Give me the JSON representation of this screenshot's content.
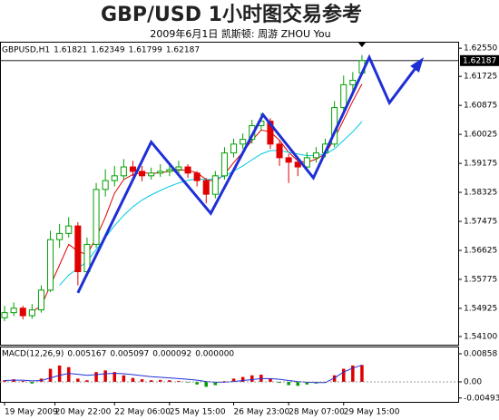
{
  "chart_data": {
    "type": "candlestick",
    "title": "GBP/USD 1小时图交易参考",
    "subtitle": "2009年6月1日  凯斯顿: 周游 ZHOU You",
    "symbol": "GBPUSD,H1",
    "up_color": "#00a000",
    "down_color": "#e00000",
    "candles": [
      [
        1.5465,
        1.55,
        1.5455,
        1.548
      ],
      [
        1.548,
        1.551,
        1.547,
        1.5493
      ],
      [
        1.5493,
        1.55,
        1.546,
        1.5471
      ],
      [
        1.5471,
        1.5505,
        1.5462,
        1.5488
      ],
      [
        1.5488,
        1.556,
        1.548,
        1.5546
      ],
      [
        1.5546,
        1.572,
        1.554,
        1.5694
      ],
      [
        1.5694,
        1.574,
        1.567,
        1.5712
      ],
      [
        1.5712,
        1.576,
        1.57,
        1.5734
      ],
      [
        1.5734,
        1.5745,
        1.556,
        1.56
      ],
      [
        1.56,
        1.57,
        1.5585,
        1.568
      ],
      [
        1.568,
        1.586,
        1.567,
        1.5841
      ],
      [
        1.5841,
        1.59,
        1.582,
        1.5867
      ],
      [
        1.5867,
        1.591,
        1.585,
        1.5881
      ],
      [
        1.5881,
        1.593,
        1.587,
        1.5907
      ],
      [
        1.5907,
        1.5925,
        1.588,
        1.5894
      ],
      [
        1.5894,
        1.591,
        1.5865,
        1.5881
      ],
      [
        1.5881,
        1.5905,
        1.587,
        1.5889
      ],
      [
        1.5889,
        1.5915,
        1.5878,
        1.5894
      ],
      [
        1.5894,
        1.592,
        1.588,
        1.5899
      ],
      [
        1.5899,
        1.5925,
        1.5885,
        1.5907
      ],
      [
        1.5907,
        1.5915,
        1.5875,
        1.5889
      ],
      [
        1.5889,
        1.5895,
        1.585,
        1.5867
      ],
      [
        1.5867,
        1.5875,
        1.58,
        1.5827
      ],
      [
        1.5827,
        1.5895,
        1.5815,
        1.5881
      ],
      [
        1.5881,
        1.5965,
        1.587,
        1.5948
      ],
      [
        1.5948,
        1.599,
        1.5935,
        1.5974
      ],
      [
        1.5974,
        1.6005,
        1.596,
        1.5988
      ],
      [
        1.5988,
        1.6045,
        1.5975,
        1.6028
      ],
      [
        1.6028,
        1.6065,
        1.6015,
        1.6041
      ],
      [
        1.6041,
        1.605,
        1.596,
        1.5974
      ],
      [
        1.5974,
        1.5985,
        1.591,
        1.5934
      ],
      [
        1.5934,
        1.5945,
        1.586,
        1.5921
      ],
      [
        1.5921,
        1.5935,
        1.588,
        1.5907
      ],
      [
        1.5907,
        1.595,
        1.5895,
        1.5934
      ],
      [
        1.5934,
        1.5965,
        1.592,
        1.5948
      ],
      [
        1.5948,
        1.599,
        1.5935,
        1.5974
      ],
      [
        1.5974,
        1.61,
        1.5965,
        1.6081
      ],
      [
        1.6081,
        1.6175,
        1.607,
        1.6148
      ],
      [
        1.6148,
        1.6185,
        1.612,
        1.6161
      ],
      [
        1.61821,
        1.62349,
        1.61799,
        1.62187
      ]
    ],
    "overlays": [
      {
        "color": "#e00000",
        "values": [
          null,
          null,
          null,
          1.5483,
          1.55,
          1.556,
          1.562,
          1.568,
          1.566,
          1.565,
          1.57,
          1.576,
          1.583,
          1.587,
          1.5885,
          1.589,
          1.5888,
          1.589,
          1.5894,
          1.5898,
          1.5897,
          1.589,
          1.587,
          1.5865,
          1.5885,
          1.592,
          1.595,
          1.5985,
          1.6015,
          1.601,
          1.5985,
          1.595,
          1.5925,
          1.592,
          1.593,
          1.5945,
          1.599,
          1.6045,
          1.61,
          1.615
        ]
      },
      {
        "color": "#00c8e0",
        "values": [
          null,
          null,
          null,
          null,
          null,
          null,
          1.556,
          1.559,
          1.561,
          1.563,
          1.5665,
          1.57,
          1.5735,
          1.5765,
          1.579,
          1.581,
          1.5825,
          1.5838,
          1.585,
          1.586,
          1.5868,
          1.5872,
          1.587,
          1.5872,
          1.588,
          1.5895,
          1.591,
          1.5928,
          1.5945,
          1.5955,
          1.5955,
          1.595,
          1.5945,
          1.594,
          1.594,
          1.5945,
          1.596,
          1.5985,
          1.601,
          1.604
        ]
      }
    ],
    "annotation": {
      "color": "#1f2fd6",
      "x": [
        8,
        16,
        22.5,
        28.2,
        33.7,
        39.8,
        42,
        45.5
      ],
      "y": [
        1.5538,
        1.598,
        1.5771,
        1.606,
        1.5875,
        1.6228,
        1.6095,
        1.622
      ]
    },
    "xlim": [
      -0.5,
      49.5
    ],
    "ylim": [
      1.5386,
      1.6274
    ],
    "yticks": [
      {
        "value": 1.6255,
        "label": "1.62550"
      },
      {
        "value": 1.61725,
        "label": "1.61725"
      },
      {
        "value": 1.60875,
        "label": "1.60875"
      },
      {
        "value": 1.60025,
        "label": "1.60025"
      },
      {
        "value": 1.59175,
        "label": "1.59175"
      },
      {
        "value": 1.58325,
        "label": "1.58325"
      },
      {
        "value": 1.57475,
        "label": "1.57475"
      },
      {
        "value": 1.56625,
        "label": "1.56625"
      },
      {
        "value": 1.55775,
        "label": "1.55775"
      },
      {
        "value": 1.54925,
        "label": "1.54925"
      },
      {
        "value": 1.541,
        "label": "1.54100"
      }
    ],
    "xticks": [
      {
        "value": 0,
        "label": "19 May 2009"
      },
      {
        "value": 5.5,
        "label": "20 May 22:00"
      },
      {
        "value": 12,
        "label": "22 May 06:00"
      },
      {
        "value": 18,
        "label": "25 May 15:00"
      },
      {
        "value": 25,
        "label": "26 May 23:00"
      },
      {
        "value": 31,
        "label": "28 May 07:00"
      },
      {
        "value": 37,
        "label": "29 May 15:00"
      }
    ],
    "macd": {
      "name": "MACD(12,26,9)",
      "hist_up_color": "#e00000",
      "hist_down_color": "#00a000",
      "signal_color": "#1f2fd6",
      "values": [
        0.0005,
        0.0008,
        0.0003,
        -0.0005,
        0.001,
        0.004,
        0.005,
        0.0045,
        0.001,
        0.0005,
        0.003,
        0.0035,
        0.003,
        0.002,
        0.0012,
        0.0008,
        0.0005,
        0.0006,
        0.0005,
        0.0003,
        -0.0002,
        -0.0008,
        -0.0015,
        -0.001,
        0.0002,
        0.001,
        0.0015,
        0.002,
        0.0022,
        0.001,
        -0.0003,
        -0.001,
        -0.0012,
        -0.0008,
        -0.0005,
        0.0,
        0.002,
        0.004,
        0.005,
        0.005167
      ],
      "signal": [
        0.0004,
        0.0005,
        0.0005,
        0.0003,
        0.0004,
        0.0012,
        0.002,
        0.0026,
        0.0023,
        0.002,
        0.0022,
        0.0025,
        0.0026,
        0.0025,
        0.0022,
        0.0019,
        0.0016,
        0.0014,
        0.0012,
        0.001,
        0.0008,
        0.0005,
        0.0001,
        -0.0001,
        -0.0001,
        0.0001,
        0.0004,
        0.0007,
        0.001,
        0.001,
        0.0008,
        0.0004,
        0.0001,
        -0.0001,
        -0.0002,
        -0.0002,
        0.0012,
        0.003,
        0.0042,
        0.005097
      ],
      "header_values": [
        9.2e-05,
        {
          "value": 0,
          "label": "0.000000"
        }
      ],
      "ylim": [
        -0.0061,
        0.0108
      ],
      "yticks": [
        0.00858,
        {
          "value": 0,
          "label": "0.00"
        },
        -0.00493
      ]
    }
  }
}
